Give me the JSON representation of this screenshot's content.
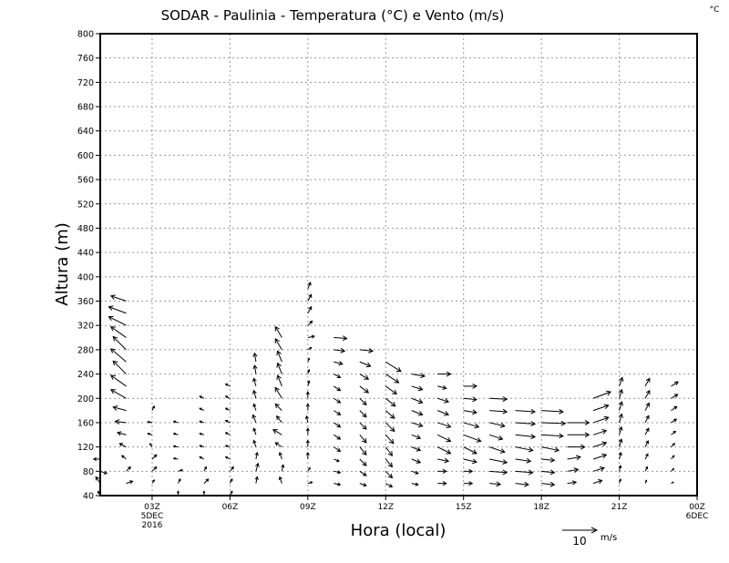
{
  "chart_data": {
    "type": "vector",
    "title": "SODAR - Paulinia - Temperatura (°C) e Vento (m/s)",
    "corner_unit": "°C",
    "xlabel": "Hora (local)",
    "ylabel": "Altura (m)",
    "xlim_hours": [
      1,
      24
    ],
    "ylim": [
      40,
      800
    ],
    "yticks": [
      40,
      80,
      120,
      160,
      200,
      240,
      280,
      320,
      360,
      400,
      440,
      480,
      520,
      560,
      600,
      640,
      680,
      720,
      760,
      800
    ],
    "xticks": [
      {
        "hour": 3,
        "label": "03Z",
        "sub1": "5DEC",
        "sub2": "2016"
      },
      {
        "hour": 6,
        "label": "06Z"
      },
      {
        "hour": 9,
        "label": "09Z"
      },
      {
        "hour": 12,
        "label": "12Z"
      },
      {
        "hour": 15,
        "label": "15Z"
      },
      {
        "hour": 18,
        "label": "18Z"
      },
      {
        "hour": 21,
        "label": "21Z"
      },
      {
        "hour": 24,
        "label": "00Z",
        "sub1": "6DEC"
      }
    ],
    "grid": true,
    "reference_vector": {
      "value": 10,
      "label": "10",
      "unit": "m/s"
    },
    "level_step": 20,
    "columns": [
      {
        "hour": 1,
        "base": 40,
        "u": [
          -0.5,
          -1,
          1.5,
          -1.5
        ],
        "v": [
          1,
          1.5,
          -0.5,
          0
        ]
      },
      {
        "hour": 2,
        "base": 60,
        "u": [
          1.5,
          1,
          -1,
          -1.5,
          -2,
          -2.5,
          -3,
          -3.5,
          -3.5,
          -3,
          -3.5,
          -3,
          -3.5,
          -4,
          -4,
          -3.5
        ],
        "v": [
          0.5,
          1,
          0.8,
          0.8,
          0.5,
          0.3,
          0.8,
          2,
          2.5,
          3,
          3,
          3,
          2.5,
          2,
          1.5,
          1.2
        ]
      },
      {
        "hour": 3,
        "base": 60,
        "u": [
          0.5,
          1,
          1,
          -0.5,
          -1,
          -1,
          0.5
        ],
        "v": [
          0.8,
          1,
          1,
          0.8,
          0.3,
          0.2,
          1
        ]
      },
      {
        "hour": 4,
        "base": 40,
        "u": [
          0,
          0.5,
          1,
          -1,
          -1,
          -1,
          -1
        ],
        "v": [
          1,
          1,
          0.3,
          0.2,
          0.2,
          0.3,
          0.3
        ]
      },
      {
        "hour": 5,
        "base": 40,
        "u": [
          0,
          1,
          0.5,
          -1,
          -1,
          -1,
          -1,
          -1,
          -1
        ],
        "v": [
          1,
          1,
          1,
          0.5,
          0.3,
          0.3,
          0.3,
          0.5,
          0.5
        ]
      },
      {
        "hour": 6,
        "base": 40,
        "u": [
          0.5,
          0.5,
          0.8,
          -1,
          -1,
          -1,
          -1,
          -1,
          -1,
          -1
        ],
        "v": [
          1,
          1,
          1,
          0.5,
          0.3,
          0.5,
          0.5,
          0.5,
          0.5,
          0.5
        ]
      },
      {
        "hour": 7,
        "base": 60,
        "u": [
          0.3,
          0.5,
          0.3,
          -0.5,
          -0.5,
          -0.7,
          -0.5,
          -0.5,
          -0.5,
          -0.3,
          -0.3
        ],
        "v": [
          1.5,
          1.8,
          1.5,
          1.5,
          1.5,
          1.8,
          1.5,
          1.8,
          1.8,
          2,
          2
        ]
      },
      {
        "hour": 8,
        "base": 60,
        "u": [
          -0.5,
          0.3,
          -0.5,
          -1.5,
          -2,
          -1.2,
          -1.5,
          -1.5,
          -1,
          -1,
          -1,
          -1.5,
          -1.5
        ],
        "v": [
          1.5,
          1.5,
          1.5,
          1,
          1.2,
          1.5,
          1.5,
          2.5,
          2.5,
          2.5,
          2.5,
          2.5,
          2.5
        ]
      },
      {
        "hour": 9,
        "base": 60,
        "u": [
          1,
          0.5,
          0,
          0,
          0,
          -0.3,
          0,
          0,
          0.3,
          0.3,
          0.3,
          0.8,
          1.5,
          1,
          0.8,
          0.8,
          0.6
        ],
        "v": [
          0.3,
          0.8,
          1.5,
          1.5,
          1.5,
          1.5,
          1.5,
          1.5,
          1.2,
          1,
          0.8,
          0.5,
          0.3,
          1,
          1.5,
          1.5,
          1.5
        ]
      },
      {
        "hour": 10,
        "base": 60,
        "u": [
          1.5,
          1.5,
          1.2,
          1.5,
          1.5,
          1.5,
          1.5,
          1.5,
          1.5,
          1.5,
          2,
          2.5,
          3
        ],
        "v": [
          -0.3,
          -0.3,
          -0.5,
          -1,
          -1,
          -1,
          -1,
          -1,
          -1,
          -0.8,
          -0.5,
          -0.3,
          -0.2
        ]
      },
      {
        "hour": 11,
        "base": 60,
        "u": [
          1.5,
          1.5,
          1.5,
          1.5,
          1.5,
          1.5,
          1.5,
          1.5,
          2,
          2,
          2.5,
          3
        ],
        "v": [
          -0.5,
          -1,
          -1.5,
          -1.8,
          -1.8,
          -1.5,
          -1.5,
          -1.5,
          -1.5,
          -1.2,
          -1,
          -0.3
        ]
      },
      {
        "hour": 12,
        "base": 60,
        "u": [
          1.5,
          1.5,
          1.5,
          1.5,
          1.8,
          2,
          2,
          2.2,
          2.5,
          3,
          3.5
        ],
        "v": [
          -0.8,
          -1.5,
          -1.8,
          -2,
          -2,
          -2,
          -1.8,
          -1.8,
          -1.8,
          -2,
          -2.2
        ]
      },
      {
        "hour": 13,
        "base": 60,
        "u": [
          1.5,
          1.5,
          2,
          2,
          2,
          2.5,
          2.5,
          2.5,
          2.5,
          3
        ],
        "v": [
          -0.3,
          -0.5,
          -0.8,
          -0.8,
          -0.8,
          -0.8,
          -1,
          -1,
          -0.8,
          -0.5
        ]
      },
      {
        "hour": 14,
        "base": 60,
        "u": [
          2,
          2,
          2.5,
          3,
          3,
          3,
          2.5,
          2.5,
          2,
          3
        ],
        "v": [
          0,
          0,
          -0.5,
          -1.5,
          -1.5,
          -1,
          -1,
          -0.8,
          -0.5,
          0
        ]
      },
      {
        "hour": 15,
        "base": 60,
        "u": [
          2,
          2,
          3,
          3,
          4,
          3.5,
          3,
          3,
          3
        ],
        "v": [
          0,
          0,
          -0.7,
          -1.5,
          -1.5,
          -1,
          -0.5,
          -0.3,
          0
        ]
      },
      {
        "hour": 16,
        "base": 60,
        "u": [
          2.5,
          4,
          4,
          3.5,
          3,
          3.5,
          4,
          4
        ],
        "v": [
          -0.2,
          -0.3,
          -0.8,
          -1.2,
          -1,
          -0.8,
          -0.3,
          -0.2
        ]
      },
      {
        "hour": 17,
        "base": 60,
        "u": [
          3,
          4,
          3.5,
          4,
          4.5,
          4.5,
          4.5
        ],
        "v": [
          -0.3,
          -0.3,
          -0.5,
          -0.8,
          -0.5,
          -0.3,
          -0.3
        ]
      },
      {
        "hour": 18,
        "base": 60,
        "u": [
          3,
          3,
          3,
          4,
          5,
          5.5,
          5
        ],
        "v": [
          -0.3,
          -0.3,
          -0.3,
          -0.8,
          -0.3,
          -0.2,
          -0.3
        ]
      },
      {
        "hour": 19,
        "base": 60,
        "u": [
          2,
          2.5,
          3,
          4,
          5,
          5
        ],
        "v": [
          0.3,
          0.4,
          0.5,
          0,
          0,
          0
        ]
      },
      {
        "hour": 20,
        "base": 60,
        "u": [
          2,
          2.5,
          3,
          3,
          3,
          3.5,
          3.5,
          4
        ],
        "v": [
          0.7,
          0.8,
          1,
          1,
          1,
          1.2,
          1.2,
          1.5
        ]
      },
      {
        "hour": 21,
        "base": 60,
        "u": [
          0.3,
          0.3,
          0.4,
          0.5,
          0.5,
          0.6,
          0.6,
          0.6,
          0.7
        ],
        "v": [
          1,
          1.3,
          1.5,
          1.8,
          1.8,
          2,
          2,
          2,
          2
        ]
      },
      {
        "hour": 22,
        "base": 60,
        "u": [
          0.3,
          0.5,
          0.6,
          0.7,
          0.8,
          0.8,
          0.9,
          1,
          1
        ],
        "v": [
          0.7,
          1,
          1.2,
          1.4,
          1.5,
          1.6,
          1.7,
          1.8,
          1.8
        ]
      },
      {
        "hour": 23,
        "base": 60,
        "u": [
          0.5,
          0.6,
          0.7,
          0.8,
          1,
          1.2,
          1.3,
          1.5,
          1.6
        ],
        "v": [
          0.3,
          0.6,
          0.8,
          0.8,
          0.8,
          0.8,
          0.9,
          0.9,
          1
        ]
      }
    ]
  }
}
